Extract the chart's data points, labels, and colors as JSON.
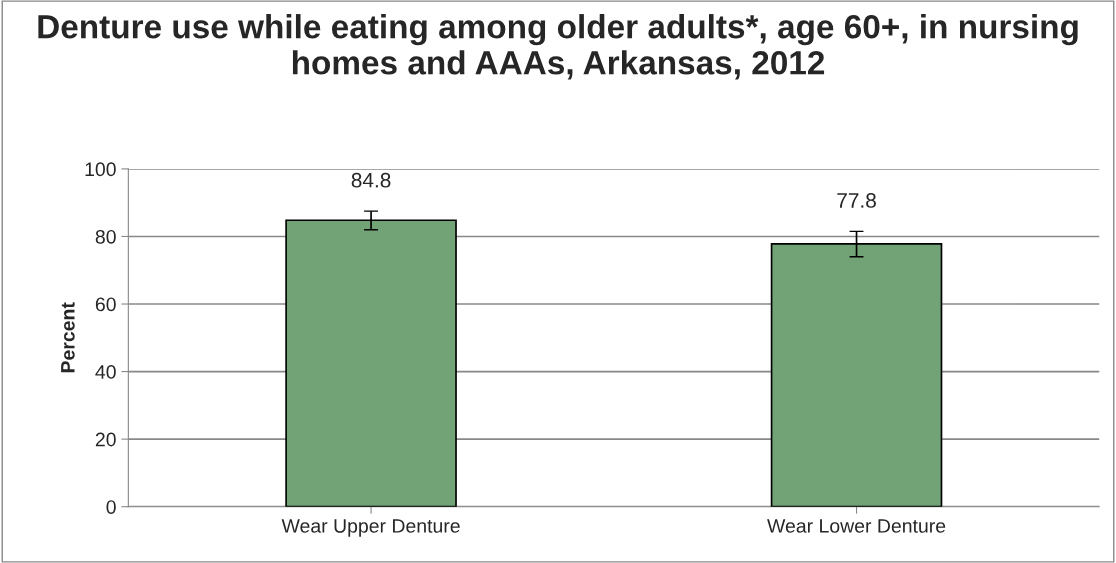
{
  "chart_data": {
    "type": "bar",
    "title": "Denture use while eating among older adults*, age 60+, in nursing homes and AAAs, Arkansas, 2012",
    "ylabel": "Percent",
    "categories": [
      "Wear Upper Denture",
      "Wear Lower Denture"
    ],
    "values": [
      84.8,
      77.8
    ],
    "color": "#71a376",
    "errors": [
      [
        82,
        87.5
      ],
      [
        74,
        81.5
      ]
    ],
    "ylim": [
      0,
      100
    ],
    "yticks": [
      0,
      20,
      40,
      60,
      80,
      100
    ],
    "grid": "y",
    "data_labels": true,
    "legend": false
  }
}
